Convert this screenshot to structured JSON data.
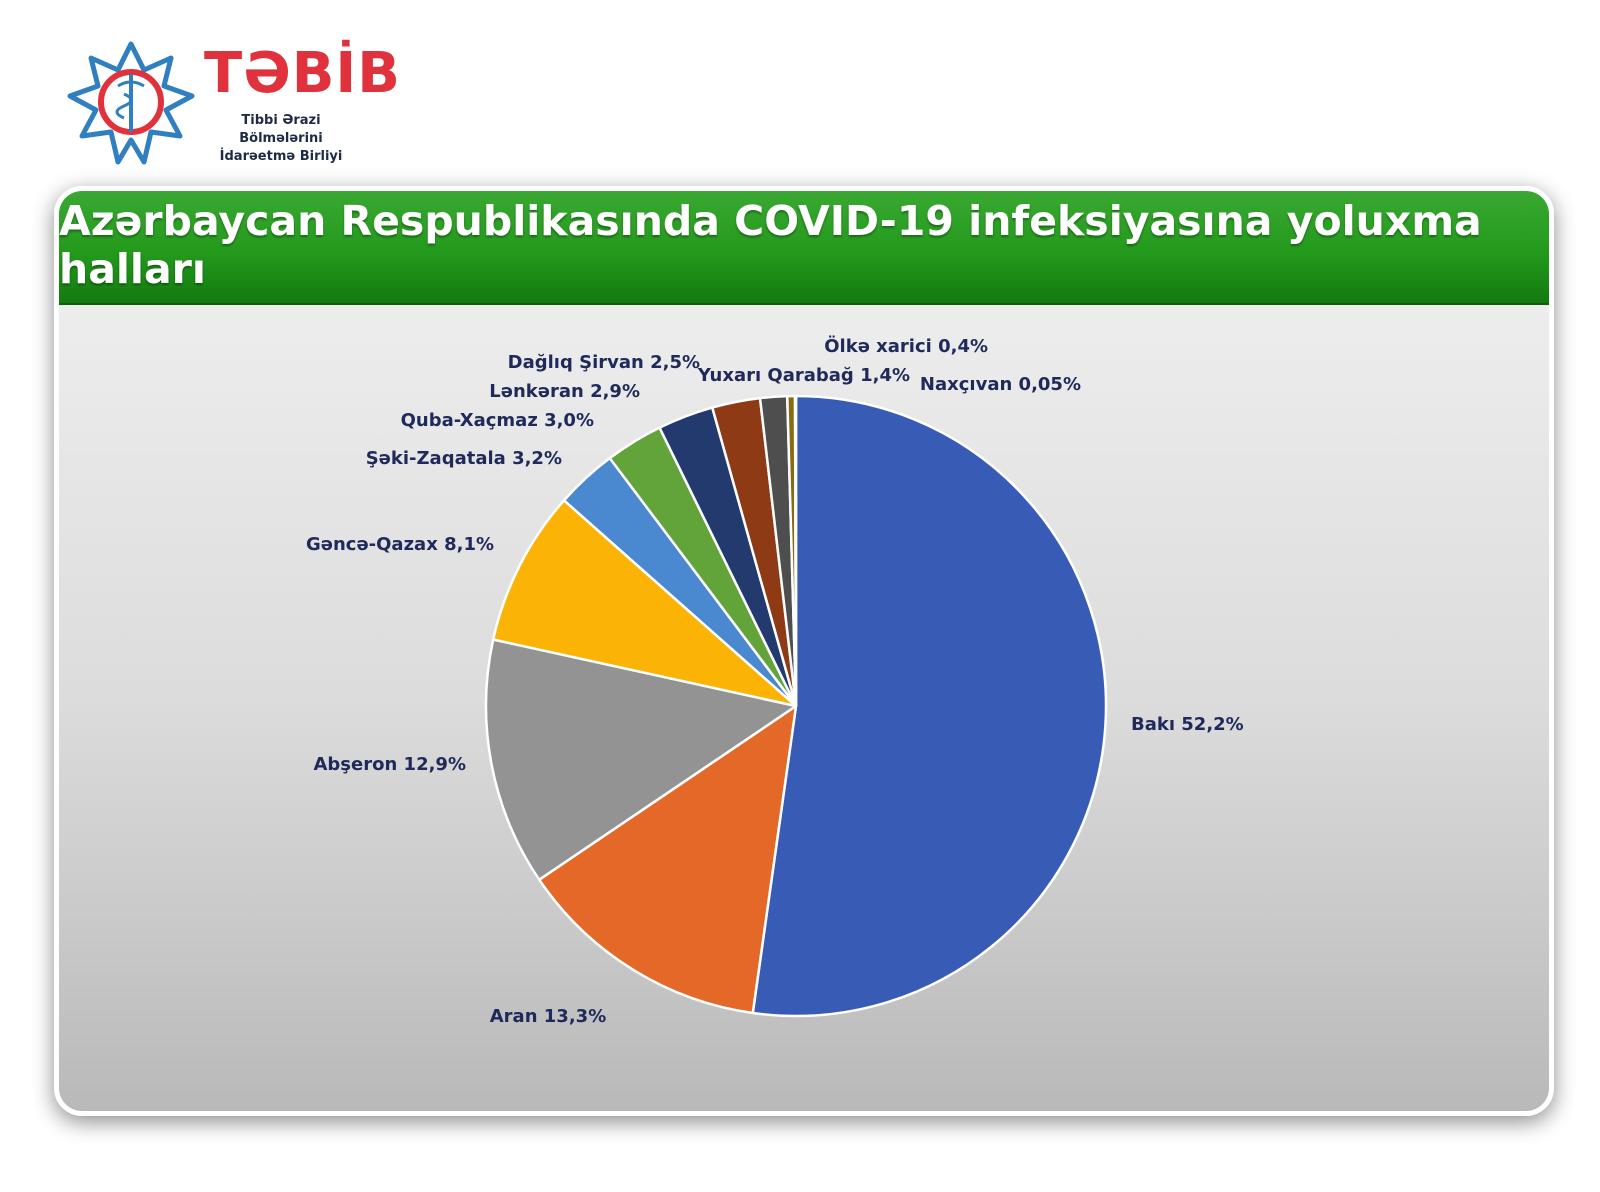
{
  "logo": {
    "name": "TƏBİB",
    "subtitle_line1": "Tibbi Ərazi Bölmələrini",
    "subtitle_line2": "İdarəetmə Birliyi"
  },
  "chart_data": {
    "type": "pie",
    "title": "Azərbaycan Respublikasında COVID-19 infeksiyasına yoluxma halları",
    "slices": [
      {
        "label": "Bakı  52,2%",
        "value": 52.2,
        "color": "#385cb6"
      },
      {
        "label": "Aran 13,3%",
        "value": 13.3,
        "color": "#e46828"
      },
      {
        "label": "Abşeron 12,9%",
        "value": 12.9,
        "color": "#939393"
      },
      {
        "label": "Gəncə-Qazax 8,1%",
        "value": 8.1,
        "color": "#fbb306"
      },
      {
        "label": "Şəki-Zaqatala 3,2%",
        "value": 3.2,
        "color": "#4a88cf"
      },
      {
        "label": "Quba-Xaçmaz 3,0%",
        "value": 3.0,
        "color": "#62a43a"
      },
      {
        "label": "Lənkəran 2,9%",
        "value": 2.9,
        "color": "#223a6d"
      },
      {
        "label": "Dağlıq Şirvan 2,5%",
        "value": 2.5,
        "color": "#8e3a14"
      },
      {
        "label": "Yuxarı Qarabağ 1,4%",
        "value": 1.4,
        "color": "#4e4e4e"
      },
      {
        "label": "Ölkə xarici 0,4%",
        "value": 0.4,
        "color": "#8a6a10"
      },
      {
        "label": "Naxçıvan 0,05%",
        "value": 0.05,
        "color": "#2c4a88"
      }
    ]
  }
}
